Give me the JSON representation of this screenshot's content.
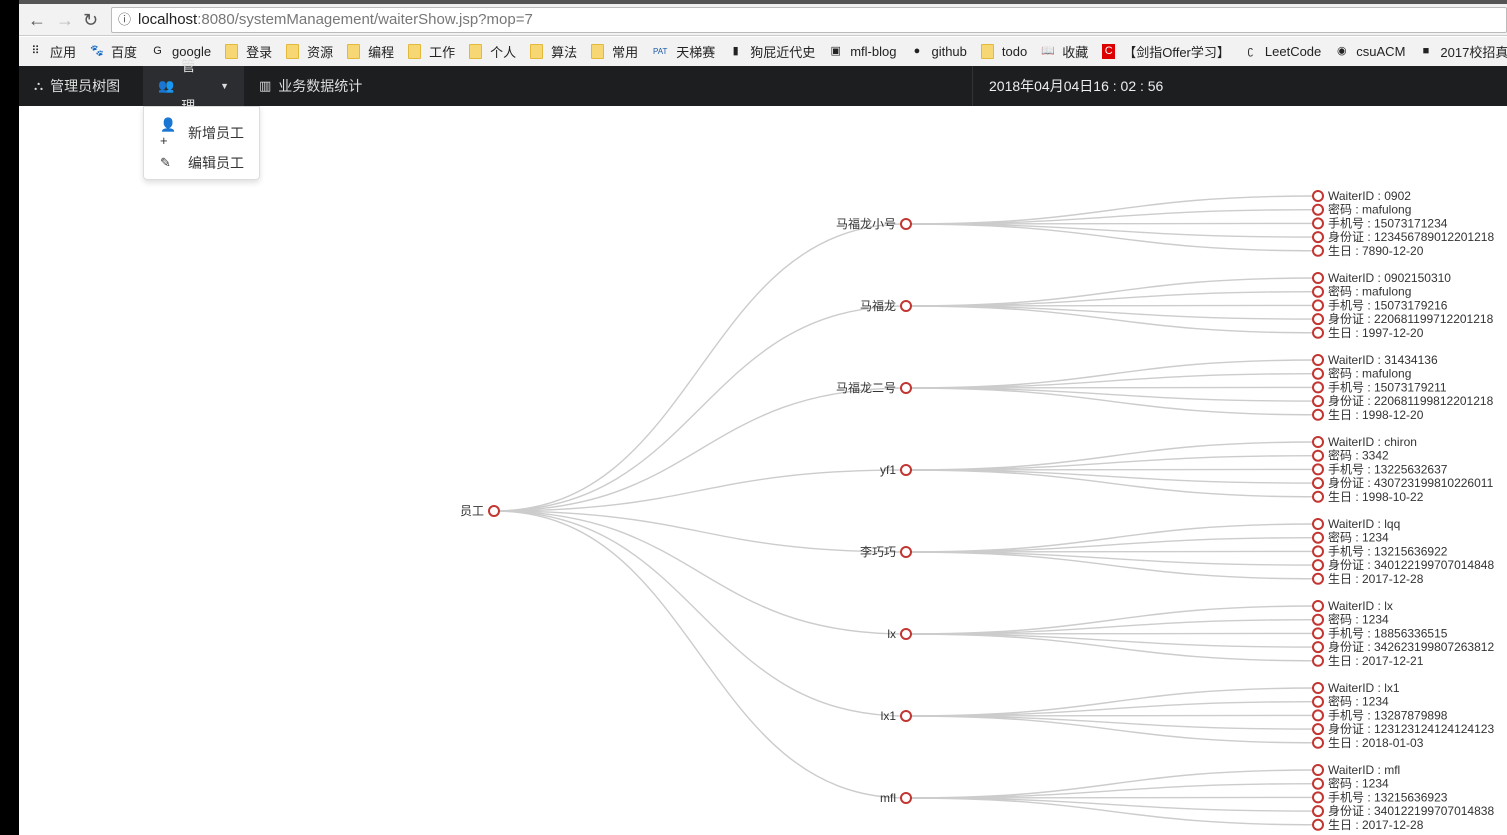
{
  "browser": {
    "url_host": "localhost",
    "url_path": ":8080/systemManagement/waiterShow.jsp?mop=7",
    "bookmarks": [
      {
        "label": "应用",
        "icon": "apps-grid-icon"
      },
      {
        "label": "百度",
        "icon": "baidu-paw-icon"
      },
      {
        "label": "google",
        "icon": "google-icon"
      },
      {
        "label": "登录",
        "icon": "folder-icon"
      },
      {
        "label": "资源",
        "icon": "folder-icon"
      },
      {
        "label": "编程",
        "icon": "folder-icon"
      },
      {
        "label": "工作",
        "icon": "folder-icon"
      },
      {
        "label": "个人",
        "icon": "folder-icon"
      },
      {
        "label": "算法",
        "icon": "folder-icon"
      },
      {
        "label": "常用",
        "icon": "folder-icon"
      },
      {
        "label": "天梯赛",
        "icon": "pat-icon"
      },
      {
        "label": "狗屁近代史",
        "icon": "book-icon"
      },
      {
        "label": "mfl-blog",
        "icon": "avatar-icon"
      },
      {
        "label": "github",
        "icon": "github-icon"
      },
      {
        "label": "todo",
        "icon": "folder-icon"
      },
      {
        "label": "收藏",
        "icon": "book-open-icon"
      },
      {
        "label": "【剑指Offer学习】",
        "icon": "csdn-icon"
      },
      {
        "label": "LeetCode",
        "icon": "leetcode-icon"
      },
      {
        "label": "csuACM",
        "icon": "csu-icon"
      },
      {
        "label": "2017校招真",
        "icon": "nowcoder-icon"
      }
    ]
  },
  "navbar": {
    "tree_label": "管理员树图",
    "manage_label": "管理",
    "stats_label": "业务数据统计",
    "clock": "2018年04月04日16 : 02 : 56"
  },
  "dropdown": {
    "add_label": "新增员工",
    "edit_label": "编辑员工"
  },
  "tree": {
    "root": "员工",
    "node_color": "#c23531",
    "link_color": "#cccccc",
    "children": [
      {
        "name": "马福龙小号",
        "leaves": [
          "WaiterID : 0902",
          "密码 : mafulong",
          "手机号 : 15073171234",
          "身份证 : 123456789012201218",
          "生日 : 7890-12-20"
        ]
      },
      {
        "name": "马福龙",
        "leaves": [
          "WaiterID : 0902150310",
          "密码 : mafulong",
          "手机号 : 15073179216",
          "身份证 : 220681199712201218",
          "生日 : 1997-12-20"
        ]
      },
      {
        "name": "马福龙二号",
        "leaves": [
          "WaiterID : 31434136",
          "密码 : mafulong",
          "手机号 : 15073179211",
          "身份证 : 220681199812201218",
          "生日 : 1998-12-20"
        ]
      },
      {
        "name": "yf1",
        "leaves": [
          "WaiterID : chiron",
          "密码 : 3342",
          "手机号 : 13225632637",
          "身份证 : 430723199810226011",
          "生日 : 1998-10-22"
        ]
      },
      {
        "name": "李巧巧",
        "leaves": [
          "WaiterID : lqq",
          "密码 : 1234",
          "手机号 : 13215636922",
          "身份证 : 340122199707014848",
          "生日 : 2017-12-28"
        ]
      },
      {
        "name": "lx",
        "leaves": [
          "WaiterID : lx",
          "密码 : 1234",
          "手机号 : 18856336515",
          "身份证 : 342623199807263812",
          "生日 : 2017-12-21"
        ]
      },
      {
        "name": "lx1",
        "leaves": [
          "WaiterID : lx1",
          "密码 : 1234",
          "手机号 : 13287879898",
          "身份证 : 123123124124124123",
          "生日 : 2018-01-03"
        ]
      },
      {
        "name": "mfl",
        "leaves": [
          "WaiterID : mfl",
          "密码 : 1234",
          "手机号 : 13215636923",
          "身份证 : 340122199707014838",
          "生日 : 2017-12-28"
        ]
      }
    ]
  }
}
